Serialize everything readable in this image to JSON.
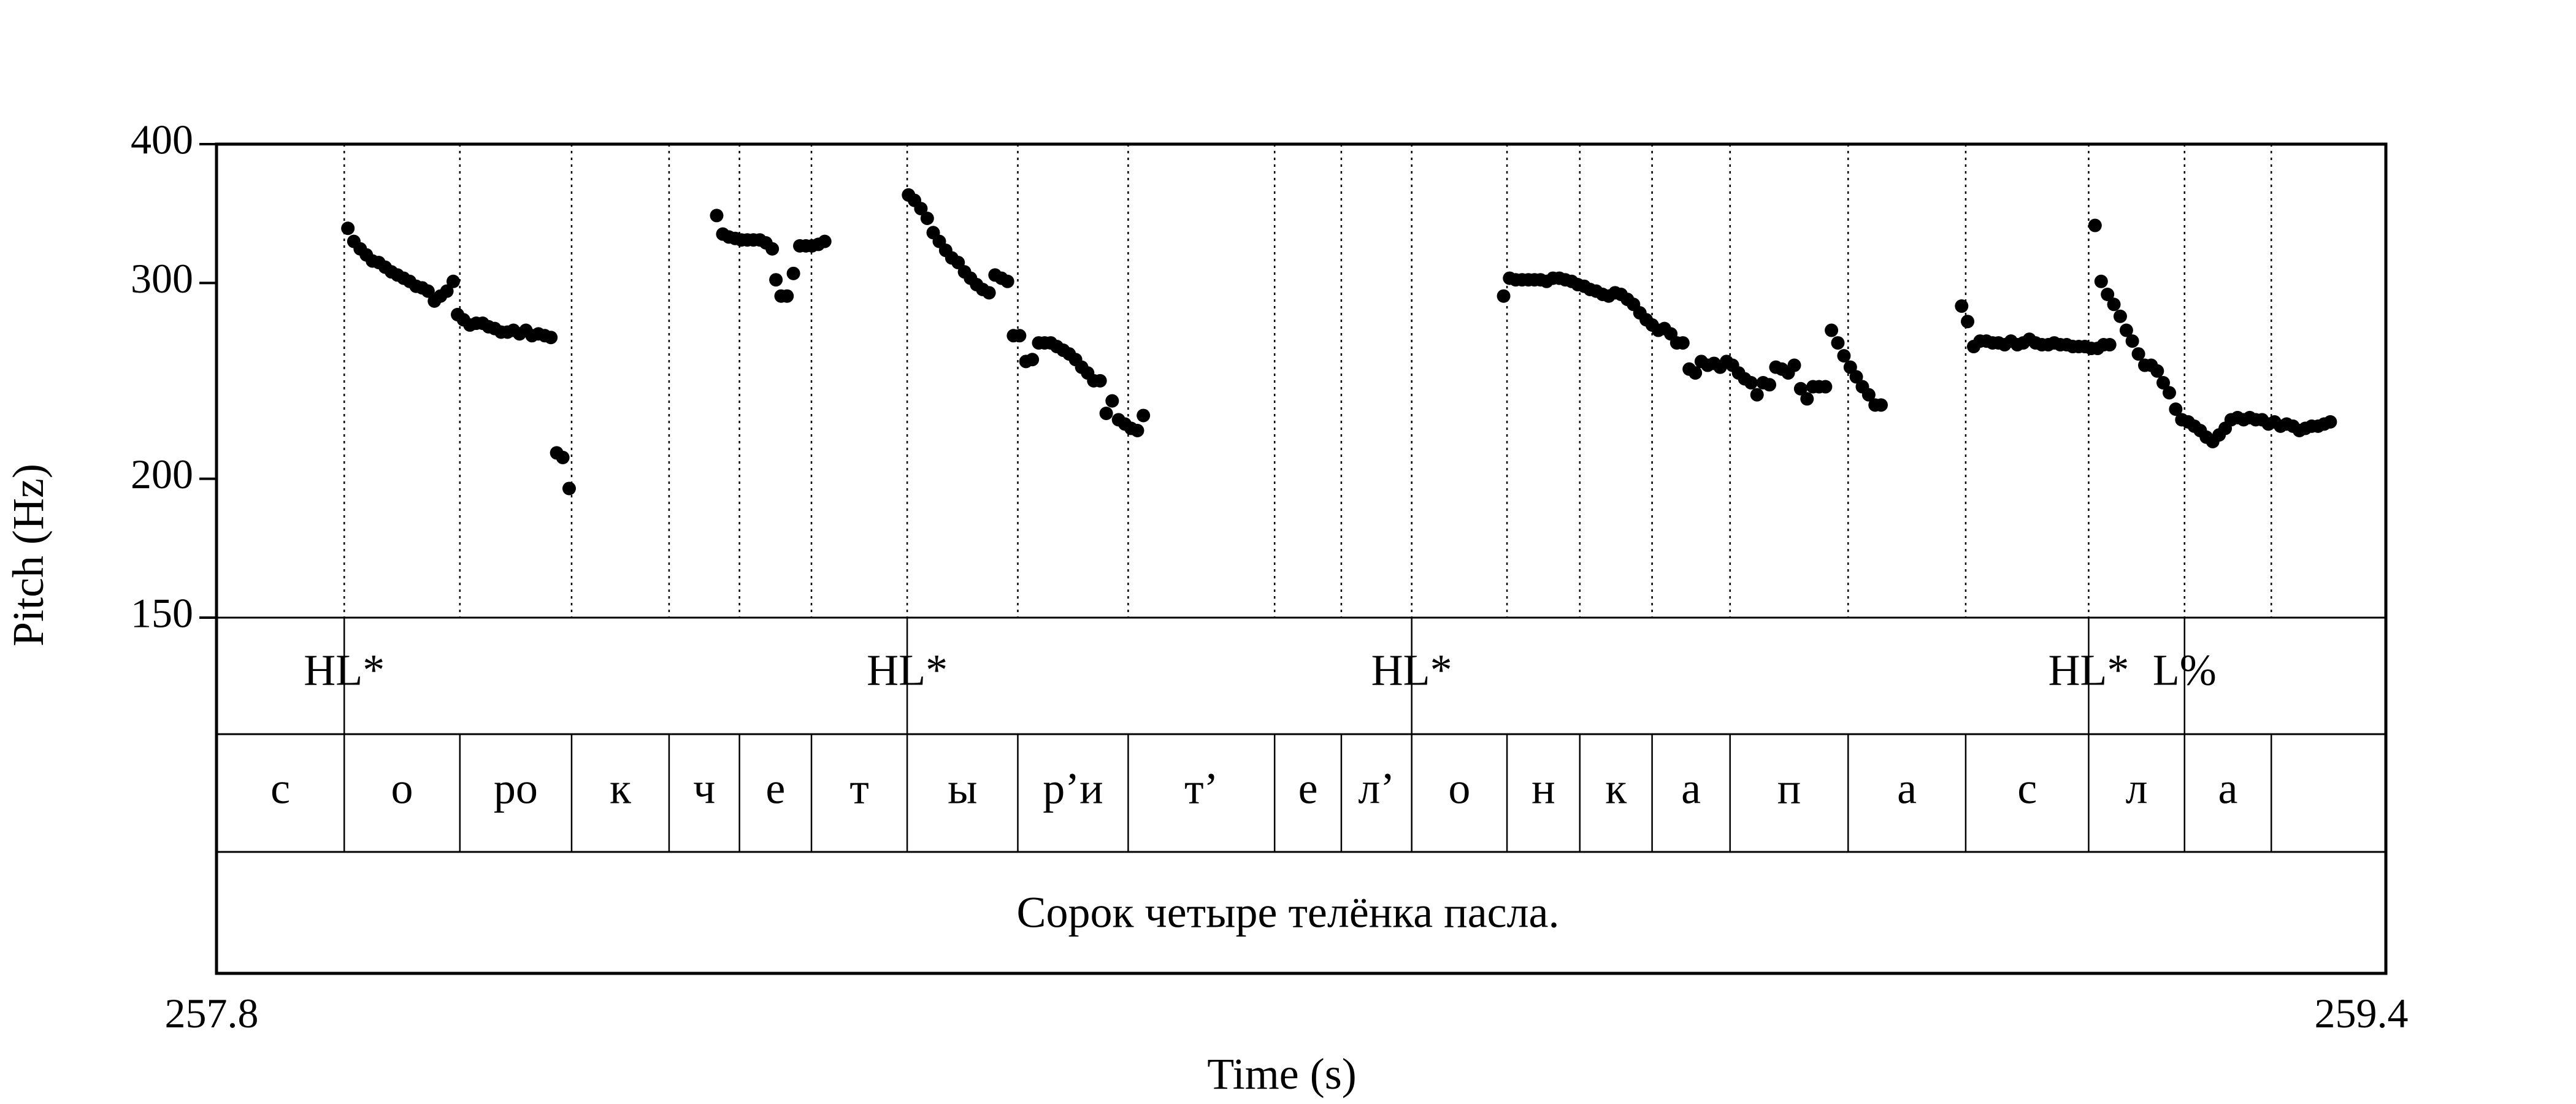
{
  "chart_data": {
    "type": "scatter",
    "title": "",
    "xlabel": "Time (s)",
    "ylabel": "Pitch (Hz)",
    "xlim": [
      257.8,
      259.4
    ],
    "ylim": [
      150,
      400
    ],
    "yscale": "log",
    "grid": false,
    "x_tick_labels": [
      "257.8",
      "259.4"
    ],
    "y_ticks": [
      400,
      300,
      200,
      150
    ],
    "y_tick_labels": [
      "400",
      "300",
      "200",
      "150"
    ],
    "color": "#000000",
    "boundaries": [
      257.8,
      257.8942,
      257.9795,
      258.0619,
      258.1338,
      258.1857,
      258.2388,
      258.3094,
      258.391,
      258.4724,
      258.5804,
      258.6296,
      258.6815,
      258.7518,
      258.8055,
      258.8588,
      258.9163,
      259.0034,
      259.0901,
      259.1808,
      259.2515,
      259.3155,
      259.4
    ],
    "tones": [
      {
        "label": "HL*",
        "time": 257.8942
      },
      {
        "label": "HL*",
        "time": 258.3094
      },
      {
        "label": "HL*",
        "time": 258.6815
      },
      {
        "label": "HL*",
        "time": 259.1808
      },
      {
        "label": "L%",
        "time": 259.2515
      }
    ],
    "segments": [
      "с",
      "о",
      "ро",
      "к",
      "ч",
      "е",
      "т",
      "ы",
      "р’и",
      "т’",
      "е",
      "л’",
      "о",
      "н",
      "к",
      "а",
      "п",
      "а",
      "с",
      "л",
      "а"
    ],
    "sentence": "Сорок четыре телёнка пасла.",
    "points": [
      [
        257.8969,
        336
      ],
      [
        257.9013,
        327
      ],
      [
        257.906,
        322
      ],
      [
        257.9105,
        318
      ],
      [
        257.915,
        314
      ],
      [
        257.9197,
        313
      ],
      [
        257.9244,
        310
      ],
      [
        257.929,
        307
      ],
      [
        257.9335,
        305
      ],
      [
        257.938,
        303
      ],
      [
        257.9425,
        301
      ],
      [
        257.9472,
        298
      ],
      [
        257.9517,
        297
      ],
      [
        257.956,
        295
      ],
      [
        257.9607,
        289
      ],
      [
        257.9652,
        292
      ],
      [
        257.9699,
        295
      ],
      [
        257.9746,
        301
      ],
      [
        257.9778,
        281
      ],
      [
        257.9822,
        278
      ],
      [
        257.9869,
        275
      ],
      [
        257.9916,
        276
      ],
      [
        257.9963,
        276
      ],
      [
        258.0007,
        274
      ],
      [
        258.0052,
        273
      ],
      [
        258.0099,
        271
      ],
      [
        258.0146,
        271
      ],
      [
        258.019,
        272
      ],
      [
        258.0235,
        270
      ],
      [
        258.0282,
        272
      ],
      [
        258.0327,
        269
      ],
      [
        258.0374,
        270
      ],
      [
        258.0421,
        269
      ],
      [
        258.0466,
        268
      ],
      [
        258.0509,
        211
      ],
      [
        258.0554,
        209
      ],
      [
        258.0601,
        196
      ],
      [
        258.1689,
        345
      ],
      [
        258.1734,
        332
      ],
      [
        258.1779,
        330
      ],
      [
        258.1826,
        329
      ],
      [
        258.1871,
        328
      ],
      [
        258.1915,
        328
      ],
      [
        258.196,
        328
      ],
      [
        258.2007,
        328
      ],
      [
        258.2052,
        326
      ],
      [
        258.2099,
        322
      ],
      [
        258.2126,
        302
      ],
      [
        258.2164,
        292
      ],
      [
        258.2208,
        292
      ],
      [
        258.2255,
        306
      ],
      [
        258.2302,
        324
      ],
      [
        258.2347,
        324
      ],
      [
        258.2392,
        324
      ],
      [
        258.2439,
        325
      ],
      [
        258.2486,
        327
      ],
      [
        258.3104,
        360
      ],
      [
        258.3148,
        356
      ],
      [
        258.3195,
        350
      ],
      [
        258.3242,
        343
      ],
      [
        258.3286,
        333
      ],
      [
        258.3331,
        327
      ],
      [
        258.3378,
        321
      ],
      [
        258.3423,
        316
      ],
      [
        258.347,
        313
      ],
      [
        258.3517,
        307
      ],
      [
        258.3561,
        303
      ],
      [
        258.3606,
        299
      ],
      [
        258.3651,
        296
      ],
      [
        258.3698,
        294
      ],
      [
        258.3742,
        305
      ],
      [
        258.3789,
        303
      ],
      [
        258.3834,
        301
      ],
      [
        258.3878,
        269
      ],
      [
        258.3923,
        269
      ],
      [
        258.397,
        255
      ],
      [
        258.4017,
        256
      ],
      [
        258.4064,
        265
      ],
      [
        258.4108,
        265
      ],
      [
        258.4153,
        265
      ],
      [
        258.4198,
        263
      ],
      [
        258.4245,
        261
      ],
      [
        258.4289,
        259
      ],
      [
        258.4336,
        256
      ],
      [
        258.4381,
        252
      ],
      [
        258.4425,
        249
      ],
      [
        258.447,
        245
      ],
      [
        258.4517,
        245
      ],
      [
        258.4562,
        229
      ],
      [
        258.4606,
        235
      ],
      [
        258.4653,
        226
      ],
      [
        258.47,
        224
      ],
      [
        258.4745,
        222
      ],
      [
        258.4792,
        221
      ],
      [
        258.4836,
        228
      ],
      [
        258.7493,
        292
      ],
      [
        258.7537,
        303
      ],
      [
        258.7582,
        302
      ],
      [
        258.7629,
        302
      ],
      [
        258.7676,
        302
      ],
      [
        258.7721,
        302
      ],
      [
        258.7765,
        302
      ],
      [
        258.781,
        301
      ],
      [
        258.7857,
        303
      ],
      [
        258.7904,
        303
      ],
      [
        258.7948,
        302
      ],
      [
        258.7995,
        301
      ],
      [
        258.804,
        299
      ],
      [
        258.8087,
        298
      ],
      [
        258.8131,
        296
      ],
      [
        258.8176,
        295
      ],
      [
        258.8223,
        293
      ],
      [
        258.8268,
        292
      ],
      [
        258.8315,
        294
      ],
      [
        258.8359,
        293
      ],
      [
        258.8406,
        290
      ],
      [
        258.8451,
        287
      ],
      [
        258.8498,
        282
      ],
      [
        258.8545,
        278
      ],
      [
        258.8589,
        275
      ],
      [
        258.8634,
        272
      ],
      [
        258.8679,
        273
      ],
      [
        258.8726,
        270
      ],
      [
        258.877,
        265
      ],
      [
        258.8815,
        265
      ],
      [
        258.8862,
        251
      ],
      [
        258.8907,
        249
      ],
      [
        258.8951,
        255
      ],
      [
        258.8998,
        253
      ],
      [
        258.9045,
        254
      ],
      [
        258.909,
        252
      ],
      [
        258.9137,
        255
      ],
      [
        258.9181,
        253
      ],
      [
        258.9226,
        249
      ],
      [
        258.9271,
        246
      ],
      [
        258.9318,
        244
      ],
      [
        258.9362,
        238
      ],
      [
        258.9407,
        244
      ],
      [
        258.9454,
        243
      ],
      [
        258.9501,
        252
      ],
      [
        258.9545,
        251
      ],
      [
        258.9592,
        249
      ],
      [
        258.9637,
        253
      ],
      [
        258.9684,
        241
      ],
      [
        258.9731,
        236
      ],
      [
        258.9775,
        242
      ],
      [
        258.982,
        242
      ],
      [
        258.9867,
        242
      ],
      [
        258.9911,
        272
      ],
      [
        258.9958,
        265
      ],
      [
        259.0003,
        258
      ],
      [
        259.005,
        252
      ],
      [
        259.0094,
        247
      ],
      [
        259.0139,
        242
      ],
      [
        259.0186,
        238
      ],
      [
        259.0233,
        233
      ],
      [
        259.0277,
        233
      ],
      [
        259.0871,
        286
      ],
      [
        259.0915,
        277
      ],
      [
        259.096,
        263
      ],
      [
        259.1007,
        266
      ],
      [
        259.1054,
        266
      ],
      [
        259.1099,
        265
      ],
      [
        259.1143,
        265
      ],
      [
        259.1188,
        264
      ],
      [
        259.1235,
        266
      ],
      [
        259.1282,
        264
      ],
      [
        259.1326,
        265
      ],
      [
        259.1371,
        267
      ],
      [
        259.1416,
        265
      ],
      [
        259.1463,
        264
      ],
      [
        259.151,
        264
      ],
      [
        259.1554,
        265
      ],
      [
        259.1599,
        264
      ],
      [
        259.1646,
        264
      ],
      [
        259.1691,
        263
      ],
      [
        259.1735,
        263
      ],
      [
        259.178,
        263
      ],
      [
        259.1827,
        262
      ],
      [
        259.1874,
        262
      ],
      [
        259.1918,
        264
      ],
      [
        259.1963,
        264
      ],
      [
        259.1855,
        338
      ],
      [
        259.19,
        301
      ],
      [
        259.1947,
        293
      ],
      [
        259.1994,
        287
      ],
      [
        259.2041,
        280
      ],
      [
        259.2086,
        272
      ],
      [
        259.213,
        266
      ],
      [
        259.2175,
        259
      ],
      [
        259.2222,
        253
      ],
      [
        259.2269,
        253
      ],
      [
        259.2314,
        250
      ],
      [
        259.2358,
        244
      ],
      [
        259.2403,
        239
      ],
      [
        259.245,
        231
      ],
      [
        259.2495,
        226
      ],
      [
        259.2542,
        225
      ],
      [
        259.2587,
        223
      ],
      [
        259.2631,
        221
      ],
      [
        259.2676,
        218
      ],
      [
        259.2723,
        216
      ],
      [
        259.277,
        219
      ],
      [
        259.2815,
        222
      ],
      [
        259.2859,
        226
      ],
      [
        259.2906,
        227
      ],
      [
        259.2951,
        226
      ],
      [
        259.2996,
        227
      ],
      [
        259.304,
        226
      ],
      [
        259.3087,
        226
      ],
      [
        259.3134,
        224
      ],
      [
        259.3179,
        225
      ],
      [
        259.3223,
        223
      ],
      [
        259.3268,
        224
      ],
      [
        259.3315,
        223
      ],
      [
        259.3362,
        221
      ],
      [
        259.3406,
        222
      ],
      [
        259.3453,
        223
      ],
      [
        259.35,
        223
      ],
      [
        259.3545,
        224
      ],
      [
        259.359,
        225
      ]
    ]
  }
}
